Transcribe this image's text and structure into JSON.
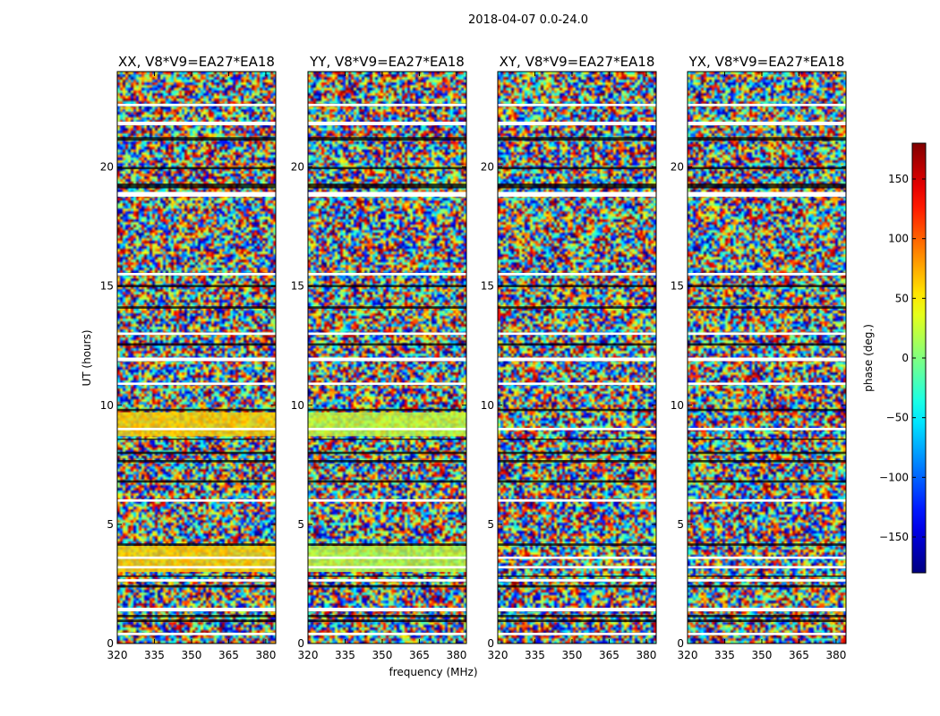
{
  "figure_title": "2018-04-07 0.0-24.0",
  "chart_data": {
    "type": "heatmap",
    "panels": [
      {
        "title": "XX, V8*V9=EA27*EA18",
        "pol": "XX"
      },
      {
        "title": "YY, V8*V9=EA27*EA18",
        "pol": "YY"
      },
      {
        "title": "XY, V8*V9=EA27*EA18",
        "pol": "XY"
      },
      {
        "title": "YX, V8*V9=EA27*EA18",
        "pol": "YX"
      }
    ],
    "xlabel": "frequency (MHz)",
    "ylabel": "UT (hours)",
    "xlim": [
      320,
      384
    ],
    "ylim": [
      0,
      24
    ],
    "xticks": [
      320,
      335,
      350,
      365,
      380
    ],
    "xtick_labels": [
      "320",
      "335",
      "350",
      "365",
      "380"
    ],
    "yticks": [
      0,
      5,
      10,
      15,
      20
    ],
    "ytick_labels": [
      "0",
      "5",
      "10",
      "15",
      "20"
    ],
    "colorbar": {
      "label": "phase (deg.)",
      "range": [
        -180,
        180
      ],
      "ticks": [
        150,
        100,
        50,
        0,
        -50,
        -100,
        -150
      ],
      "tick_labels": [
        "150",
        "100",
        "50",
        "0",
        "−50",
        "−100",
        "−150"
      ],
      "colormap": "jet"
    },
    "flagged_time_ranges_hours": [
      [
        0.35,
        0.45
      ],
      [
        1.35,
        1.5
      ],
      [
        2.6,
        2.7
      ],
      [
        3.15,
        3.25
      ],
      [
        3.55,
        3.65
      ],
      [
        5.95,
        6.05
      ],
      [
        8.95,
        9.05
      ],
      [
        10.85,
        10.95
      ],
      [
        11.85,
        12.0
      ],
      [
        12.95,
        13.05
      ],
      [
        15.45,
        15.55
      ],
      [
        18.75,
        18.95
      ],
      [
        21.75,
        21.9
      ],
      [
        22.55,
        22.65
      ]
    ],
    "dark_time_ranges_hours": [
      [
        0.9,
        1.0
      ],
      [
        1.1,
        1.2
      ],
      [
        2.35,
        2.45
      ],
      [
        2.8,
        2.85
      ],
      [
        4.1,
        4.2
      ],
      [
        6.75,
        6.85
      ],
      [
        7.6,
        7.7
      ],
      [
        7.95,
        8.05
      ],
      [
        8.55,
        8.6
      ],
      [
        9.75,
        9.85
      ],
      [
        12.5,
        12.6
      ],
      [
        14.05,
        14.15
      ],
      [
        14.95,
        15.05
      ],
      [
        19.1,
        19.3
      ],
      [
        19.9,
        20.0
      ],
      [
        21.1,
        21.25
      ]
    ],
    "coherent_phase_bands": [
      {
        "panel": "XX",
        "time_range_hours": [
          3.0,
          4.1
        ],
        "phase_deg": 60
      },
      {
        "panel": "XX",
        "time_range_hours": [
          8.7,
          9.7
        ],
        "phase_deg": 60
      },
      {
        "panel": "YY",
        "time_range_hours": [
          3.0,
          4.1
        ],
        "phase_deg": 20
      },
      {
        "panel": "YY",
        "time_range_hours": [
          8.7,
          9.7
        ],
        "phase_deg": 25
      }
    ]
  }
}
